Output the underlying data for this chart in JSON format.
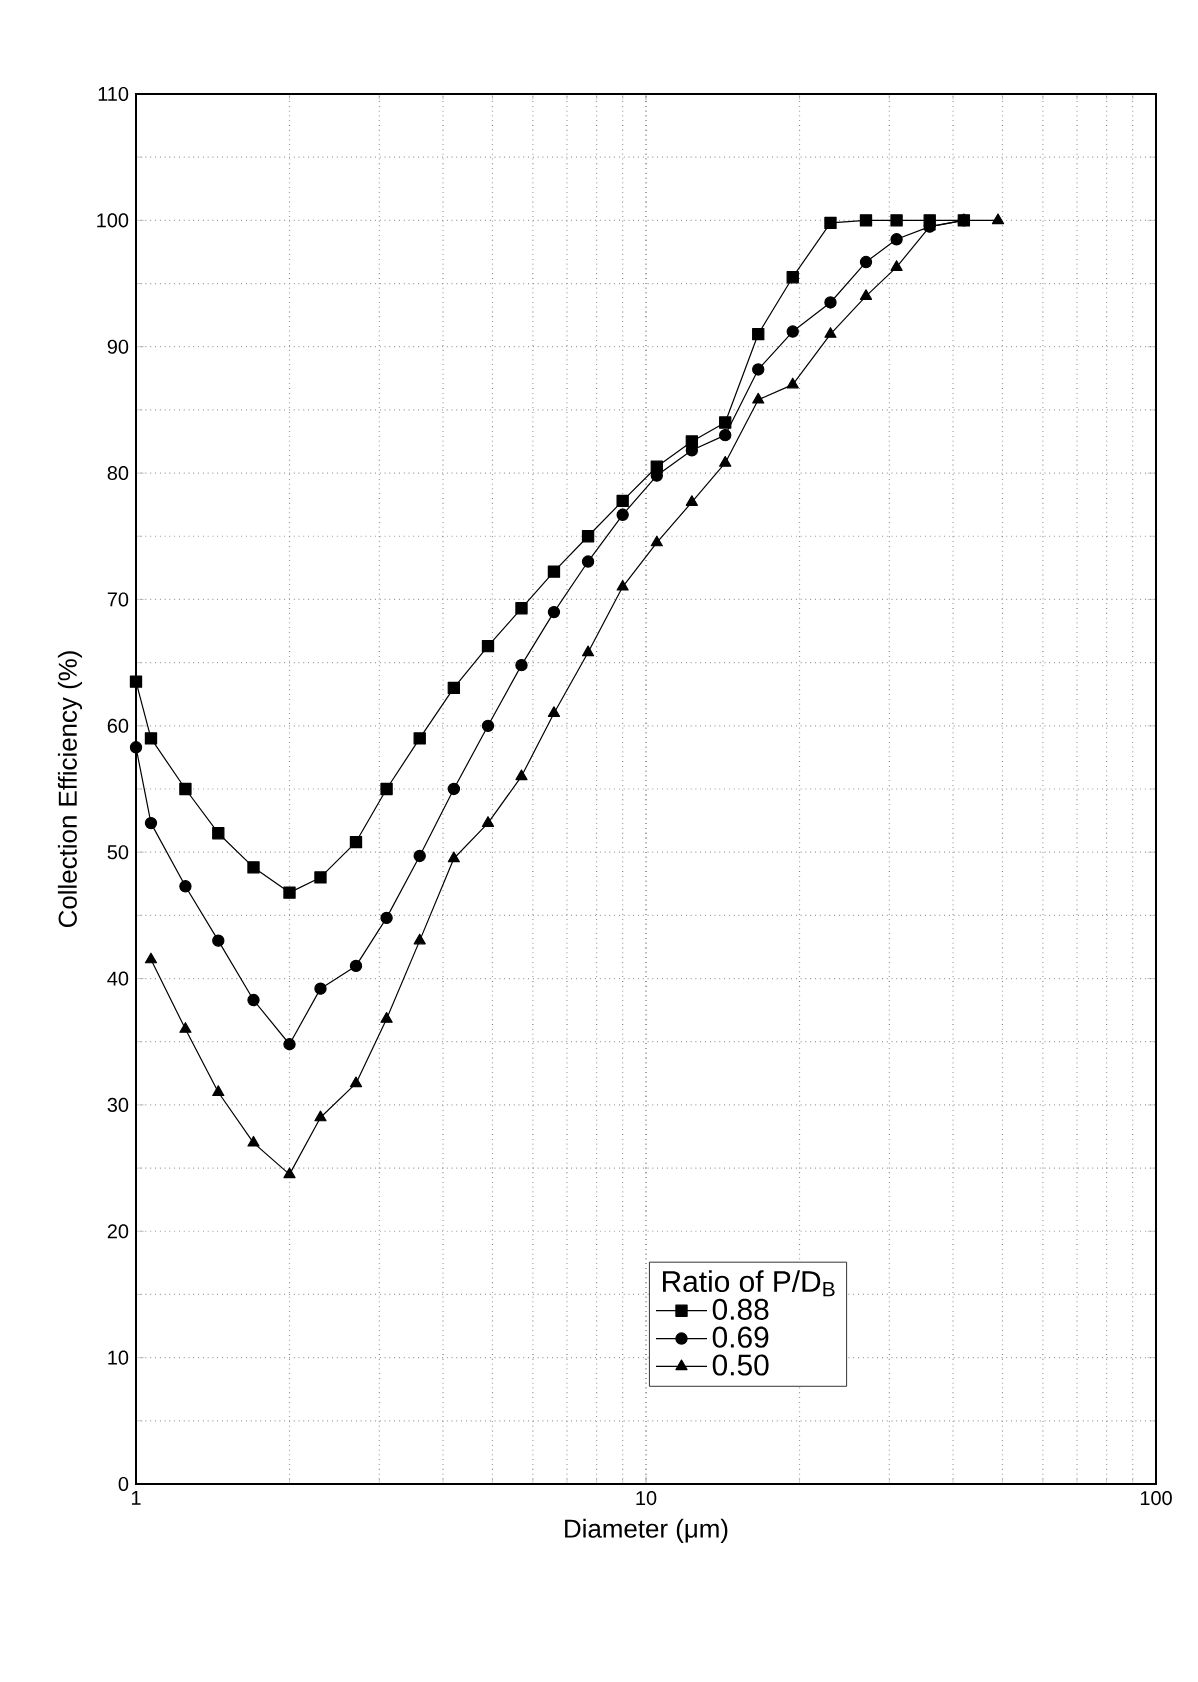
{
  "chart_data": {
    "type": "line",
    "xlabel": "Diameter (μm)",
    "ylabel": "Collection Efficiency (%)",
    "legend_title": "Ratio of P/D$_{B}$",
    "log": "x",
    "grid": true,
    "legend": "bottom",
    "line_style": "solid",
    "xlim": [
      1,
      100
    ],
    "xticks": [
      1,
      10,
      100
    ],
    "ylim": [
      0,
      110
    ],
    "yticks": [
      0,
      10,
      20,
      30,
      40,
      50,
      60,
      70,
      80,
      90,
      100,
      110
    ],
    "series": [
      {
        "name": "0.88",
        "color": "#000000",
        "marker": "square",
        "x": [
          1,
          1.07,
          1.25,
          1.45,
          1.7,
          2.0,
          2.3,
          2.7,
          3.1,
          3.6,
          4.2,
          4.9,
          5.7,
          6.6,
          7.7,
          9,
          10.5,
          12.3,
          14.3,
          16.6,
          19.4,
          23,
          27,
          31,
          36,
          42
        ],
        "values": [
          63.5,
          59,
          55,
          51.5,
          48.8,
          46.8,
          48,
          50.8,
          55,
          59,
          63,
          66.3,
          69.3,
          72.2,
          75,
          77.8,
          80.5,
          82.5,
          84,
          91,
          95.5,
          99.8,
          100,
          100,
          100,
          100
        ]
      },
      {
        "name": "0.69",
        "color": "#000000",
        "marker": "circle",
        "x": [
          1,
          1.07,
          1.25,
          1.45,
          1.7,
          2.0,
          2.3,
          2.7,
          3.1,
          3.6,
          4.2,
          4.9,
          5.7,
          6.6,
          7.7,
          9,
          10.5,
          12.3,
          14.3,
          16.6,
          19.4,
          23,
          27,
          31,
          36,
          42
        ],
        "values": [
          58.3,
          52.3,
          47.3,
          43,
          38.3,
          34.8,
          39.2,
          41,
          44.8,
          49.7,
          55,
          60,
          64.8,
          69,
          73,
          76.7,
          79.8,
          81.8,
          83,
          88.2,
          91.2,
          93.5,
          96.7,
          98.5,
          99.5,
          100
        ]
      },
      {
        "name": "0.50",
        "color": "#000000",
        "marker": "triangle",
        "x": [
          1.07,
          1.25,
          1.45,
          1.7,
          2.0,
          2.3,
          2.7,
          3.1,
          3.6,
          4.2,
          4.9,
          5.7,
          6.6,
          7.7,
          9,
          10.5,
          12.3,
          14.3,
          16.6,
          19.4,
          23,
          27,
          31,
          36,
          42,
          49
        ],
        "values": [
          41.5,
          36,
          31,
          27,
          24.5,
          29,
          31.7,
          36.8,
          43,
          49.5,
          52.3,
          56,
          61,
          65.8,
          71,
          74.5,
          77.7,
          80.8,
          85.8,
          87,
          91,
          94,
          96.3,
          99.5,
          100,
          100
        ]
      }
    ]
  }
}
